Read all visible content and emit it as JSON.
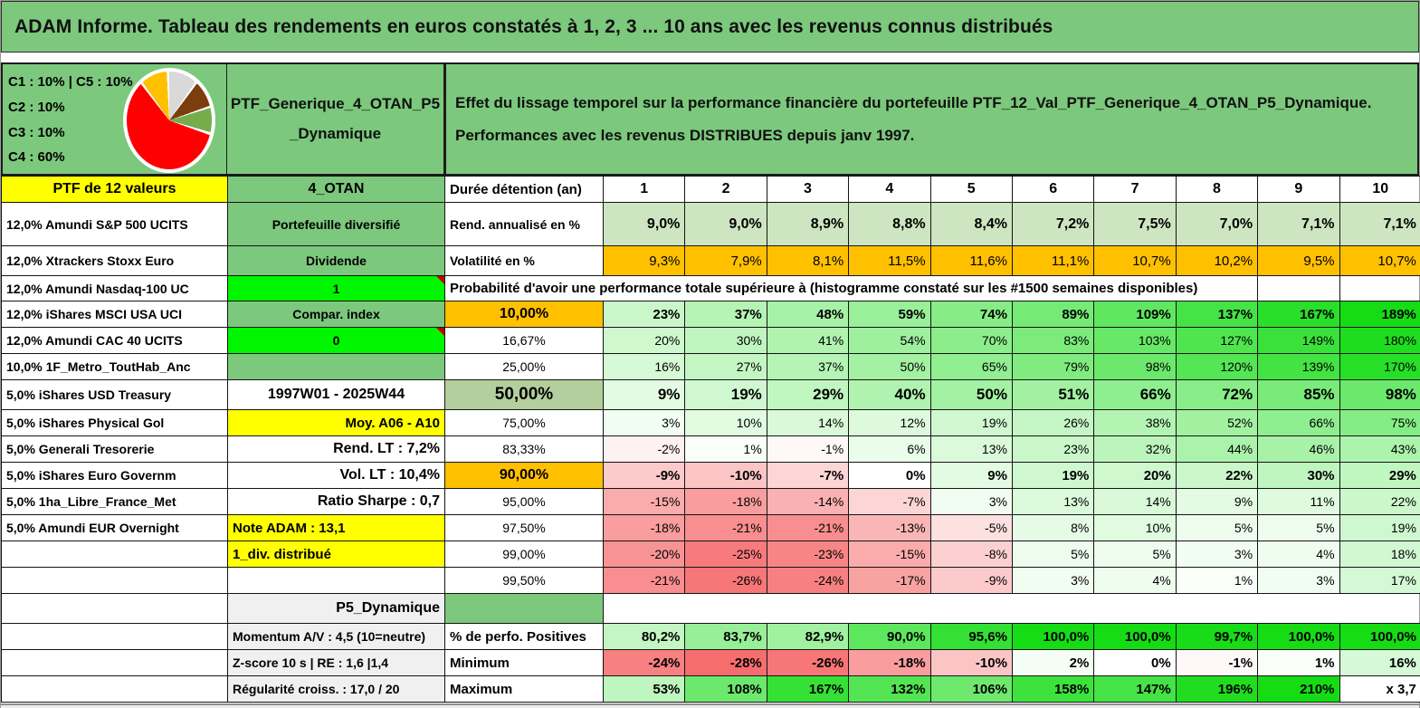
{
  "window": {
    "title": "ADAM Informe. Tableau des rendements en euros constatés à 1, 2, 3 ... 10 ans avec les revenus connus distribués"
  },
  "allocation": {
    "lines": [
      "C1 : 10% | C5 : 10%",
      "C2 : 10%",
      "C3 : 10%",
      "C4 : 60%"
    ],
    "pie": {
      "type": "pie",
      "slices": [
        {
          "label": "C4",
          "value": 60,
          "color": "#FE0000"
        },
        {
          "label": "C1",
          "value": 10,
          "color": "#FFC000"
        },
        {
          "label": "C2",
          "value": 10,
          "color": "#D9D9D9"
        },
        {
          "label": "C3",
          "value": 10,
          "color": "#7C3E0C"
        },
        {
          "label": "C5",
          "value": 10,
          "color": "#76AD4B"
        }
      ]
    }
  },
  "portfolio": {
    "name_line1": "PTF_Generique_4_OTAN_P5",
    "name_line2": "_Dynamique",
    "left_header": "PTF de 12 valeurs",
    "group": "4_OTAN"
  },
  "description": {
    "line1": "Effet du lissage temporel sur la performance financière du portefeuille PTF_12_Val_PTF_Generique_4_OTAN_P5_Dynamique.",
    "line2": "Performances avec les revenus DISTRIBUES depuis janv 1997."
  },
  "table": {
    "duration_label": "Durée détention (an)",
    "durations": [
      "1",
      "2",
      "3",
      "4",
      "5",
      "6",
      "7",
      "8",
      "9",
      "10"
    ],
    "prob_banner": "Probabilité d'avoir une performance totale supérieure à (histogramme constaté sur les #1500 semaines disponibles)",
    "rows": [
      {
        "asset": "12,0% Amundi S&P 500 UCITS",
        "mid": "Portefeuille diversifié",
        "metric": "Rend. annualisé en %",
        "values": [
          "9,0%",
          "9,0%",
          "8,9%",
          "8,8%",
          "8,4%",
          "7,2%",
          "7,5%",
          "7,0%",
          "7,1%",
          "7,1%"
        ]
      },
      {
        "asset": "12,0% Xtrackers Stoxx Euro",
        "mid": "Dividende",
        "metric": "Volatilité en %",
        "values": [
          "9,3%",
          "7,9%",
          "8,1%",
          "11,5%",
          "11,6%",
          "11,1%",
          "10,7%",
          "10,2%",
          "9,5%",
          "10,7%"
        ]
      },
      {
        "asset": "12,0% Amundi Nasdaq-100 UC",
        "mid": "1",
        "metric": "",
        "values": []
      },
      {
        "asset": "12,0% iShares MSCI USA UCI",
        "mid": "Compar. index",
        "metric": "10,00%",
        "values": [
          "23%",
          "37%",
          "48%",
          "59%",
          "74%",
          "89%",
          "109%",
          "137%",
          "167%",
          "189%"
        ]
      },
      {
        "asset": "12,0% Amundi CAC 40 UCITS",
        "mid": "0",
        "metric": "16,67%",
        "values": [
          "20%",
          "30%",
          "41%",
          "54%",
          "70%",
          "83%",
          "103%",
          "127%",
          "149%",
          "180%"
        ]
      },
      {
        "asset": "10,0% 1F_Metro_ToutHab_Anc",
        "mid": "",
        "metric": "25,00%",
        "values": [
          "16%",
          "27%",
          "37%",
          "50%",
          "65%",
          "79%",
          "98%",
          "120%",
          "139%",
          "170%"
        ]
      },
      {
        "asset": "5,0% iShares USD Treasury",
        "mid": "1997W01 - 2025W44",
        "metric": "50,00%",
        "values": [
          "9%",
          "19%",
          "29%",
          "40%",
          "50%",
          "51%",
          "66%",
          "72%",
          "85%",
          "98%"
        ]
      },
      {
        "asset": "5,0% iShares Physical Gol",
        "mid": "Moy. A06 - A10",
        "metric": "75,00%",
        "values": [
          "3%",
          "10%",
          "14%",
          "12%",
          "19%",
          "26%",
          "38%",
          "52%",
          "66%",
          "75%"
        ]
      },
      {
        "asset": "5,0% Generali Tresorerie",
        "mid": "Rend. LT : 7,2%",
        "metric": "83,33%",
        "values": [
          "-2%",
          "1%",
          "-1%",
          "6%",
          "13%",
          "23%",
          "32%",
          "44%",
          "46%",
          "43%"
        ]
      },
      {
        "asset": "5,0% iShares Euro Governm",
        "mid": "Vol. LT : 10,4%",
        "metric": "90,00%",
        "values": [
          "-9%",
          "-10%",
          "-7%",
          "0%",
          "9%",
          "19%",
          "20%",
          "22%",
          "30%",
          "29%"
        ]
      },
      {
        "asset": "5,0% 1ha_Libre_France_Met",
        "mid": "Ratio Sharpe : 0,7",
        "metric": "95,00%",
        "values": [
          "-15%",
          "-18%",
          "-14%",
          "-7%",
          "3%",
          "13%",
          "14%",
          "9%",
          "11%",
          "22%"
        ]
      },
      {
        "asset": "5,0% Amundi EUR Overnight",
        "mid": "Note ADAM : 13,1",
        "metric": "97,50%",
        "values": [
          "-18%",
          "-21%",
          "-21%",
          "-13%",
          "-5%",
          "8%",
          "10%",
          "5%",
          "5%",
          "19%"
        ]
      },
      {
        "asset": "",
        "mid": "1_div. distribué",
        "metric": "99,00%",
        "values": [
          "-20%",
          "-25%",
          "-23%",
          "-15%",
          "-8%",
          "5%",
          "5%",
          "3%",
          "4%",
          "18%"
        ]
      },
      {
        "asset": "",
        "mid": "",
        "metric": "99,50%",
        "values": [
          "-21%",
          "-26%",
          "-24%",
          "-17%",
          "-9%",
          "3%",
          "4%",
          "1%",
          "3%",
          "17%"
        ]
      },
      {
        "asset": "",
        "mid": "P5_Dynamique",
        "metric": "",
        "values": []
      },
      {
        "asset": "",
        "mid": "Momentum A/V : 4,5 (10=neutre)",
        "metric": "% de perfo. Positives",
        "values": [
          "80,2%",
          "83,7%",
          "82,9%",
          "90,0%",
          "95,6%",
          "100,0%",
          "100,0%",
          "99,7%",
          "100,0%",
          "100,0%"
        ]
      },
      {
        "asset": "",
        "mid": "Z-score 10 s | RE : 1,6 |1,4",
        "metric": "Minimum",
        "values": [
          "-24%",
          "-28%",
          "-26%",
          "-18%",
          "-10%",
          "2%",
          "0%",
          "-1%",
          "1%",
          "16%"
        ]
      },
      {
        "asset": "",
        "mid": "Régularité croiss. : 17,0 / 20",
        "metric": "Maximum",
        "values": [
          "53%",
          "108%",
          "167%",
          "132%",
          "106%",
          "158%",
          "147%",
          "196%",
          "210%",
          "x 3,7"
        ]
      }
    ]
  },
  "colors": {
    "main_green": "#7CC87D",
    "light_green_row": "#CEE5C1",
    "sage_50": "#B3CF9D",
    "orange": "#FFC000",
    "yellow": "#FFFF00",
    "bright_green": "#00F500",
    "grey_cell": "#F0F0F0",
    "red_text": "#E90000",
    "scale_green_full": "#16DC16",
    "scale_red_full": "#F66D6E"
  }
}
